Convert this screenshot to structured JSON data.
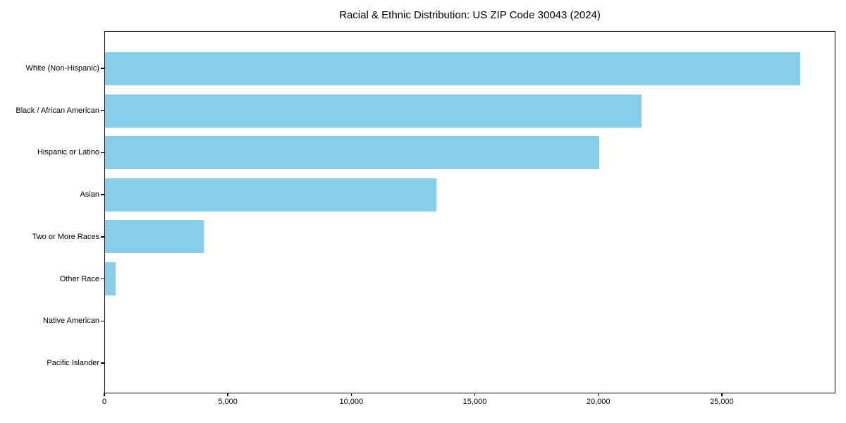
{
  "title": "Racial & Ethnic Distribution: US ZIP Code 30043 (2024)",
  "chart_data": {
    "type": "bar",
    "orientation": "horizontal",
    "title": "Racial & Ethnic Distribution: US ZIP Code 30043 (2024)",
    "categories": [
      "White (Non-Hispanic)",
      "Black / African American",
      "Hispanic or Latino",
      "Asian",
      "Two or More Races",
      "Other Race",
      "Native American",
      "Pacific Islander"
    ],
    "values": [
      28200,
      21750,
      20050,
      13450,
      4000,
      430,
      0,
      0
    ],
    "xlabel": "",
    "ylabel": "",
    "xlim": [
      0,
      29600
    ],
    "xticks": [
      0,
      5000,
      10000,
      15000,
      20000,
      25000
    ],
    "xtick_labels": [
      "0",
      "5,000",
      "10,000",
      "15,000",
      "20,000",
      "25,000"
    ],
    "bar_color": "#87CEEB",
    "background_color": "#ffffff",
    "spine_color": "#000000",
    "text_color": "#000000",
    "grid": false,
    "legend": "none",
    "sort": "descending (largest bar at top)"
  }
}
